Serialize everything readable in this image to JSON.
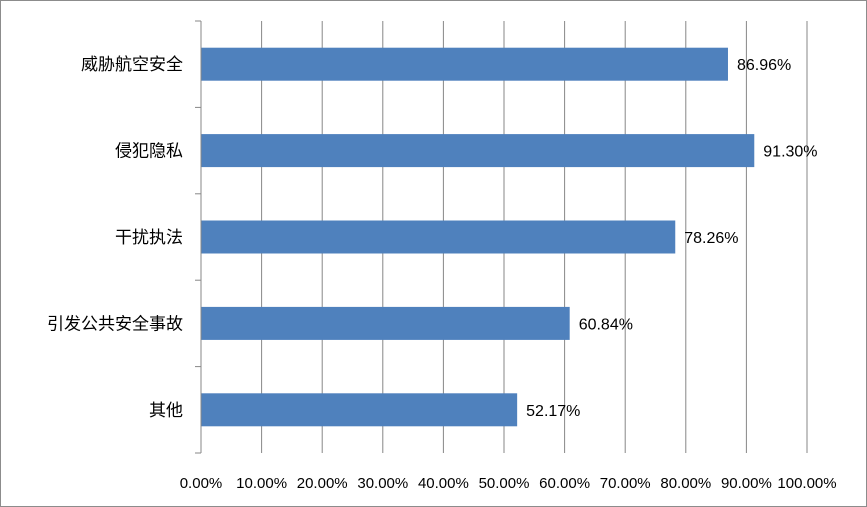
{
  "chart_data": {
    "type": "bar",
    "orientation": "horizontal",
    "categories": [
      "威胁航空安全",
      "侵犯隐私",
      "干扰执法",
      "引发公共安全事故",
      "其他"
    ],
    "values": [
      86.96,
      91.3,
      78.26,
      60.84,
      52.17
    ],
    "data_labels": [
      "86.96%",
      "91.30%",
      "78.26%",
      "60.84%",
      "52.17%"
    ],
    "xlim": [
      0,
      100
    ],
    "x_ticks": [
      0,
      10,
      20,
      30,
      40,
      50,
      60,
      70,
      80,
      90,
      100
    ],
    "x_tick_labels": [
      "0.00%",
      "10.00%",
      "20.00%",
      "30.00%",
      "40.00%",
      "50.00%",
      "60.00%",
      "70.00%",
      "80.00%",
      "90.00%",
      "100.00%"
    ],
    "grid": "vertical",
    "legend": "none",
    "bar_color": "#4f81bd",
    "grid_color": "#878787",
    "title": "",
    "xlabel": "",
    "ylabel": ""
  }
}
